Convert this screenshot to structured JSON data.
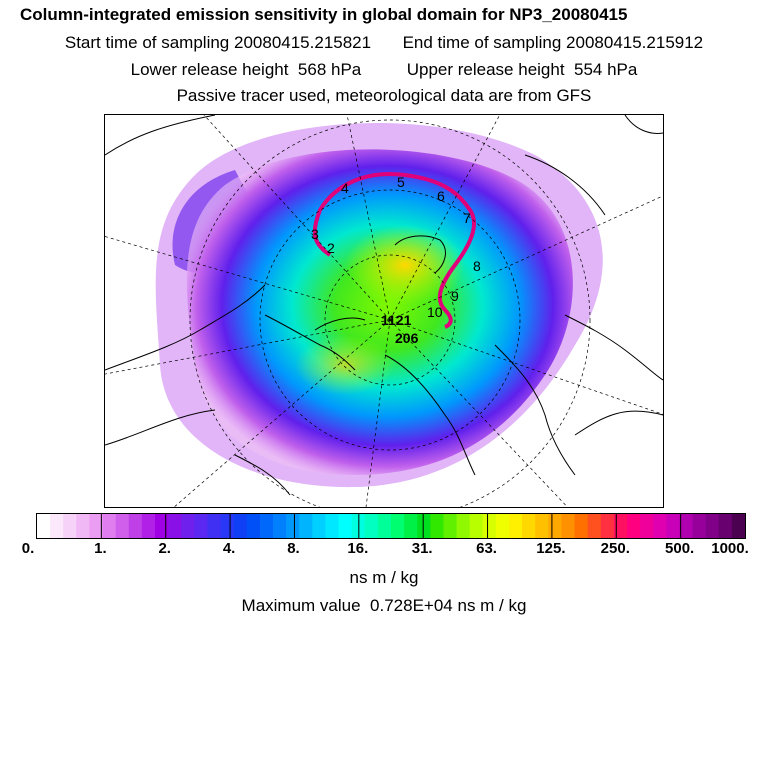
{
  "header": {
    "title": "Column-integrated emission sensitivity in global domain for NP3_20080415",
    "start_label": "Start time of sampling",
    "start_value": "20080415.215821",
    "end_label": "End time of sampling",
    "end_value": "20080415.215912",
    "lower_label": "Lower release height",
    "lower_value": "568 hPa",
    "upper_label": "Upper release height",
    "upper_value": "554 hPa",
    "note": "Passive tracer used, meteorological data are from GFS"
  },
  "map": {
    "projection": "north-polar-stereographic",
    "trajectory_labels": [
      "1",
      "2",
      "3",
      "4",
      "5",
      "6",
      "7",
      "8",
      "9",
      "10",
      "11",
      "12",
      "20"
    ],
    "center_label_1": "1121",
    "center_label_2": "10",
    "center_label_3": "206"
  },
  "colorbar": {
    "labels": [
      "0.",
      "1.",
      "2.",
      "4.",
      "8.",
      "16.",
      "31.",
      "63.",
      "125.",
      "250.",
      "500.",
      "1000."
    ],
    "colors": [
      "#ffffff",
      "#fbe9fb",
      "#f6d2f8",
      "#f1b8f6",
      "#eb9cf3",
      "#e07ef0",
      "#d060ec",
      "#c040e8",
      "#b020e6",
      "#9f00e4",
      "#8a10e8",
      "#7020ec",
      "#5a28f0",
      "#4030f4",
      "#2838f6",
      "#1040f6",
      "#0050f8",
      "#0068fa",
      "#0080fc",
      "#0098fd",
      "#00b4fe",
      "#00d0ff",
      "#00e8ff",
      "#00ffff",
      "#00ffe0",
      "#00ffc0",
      "#00ff98",
      "#00ff70",
      "#00f048",
      "#00e020",
      "#30e800",
      "#60f000",
      "#90f800",
      "#b8ff00",
      "#d8ff00",
      "#f0ff00",
      "#fff000",
      "#ffd800",
      "#ffc000",
      "#ffa800",
      "#ff9000",
      "#ff7000",
      "#ff5020",
      "#ff3040",
      "#ff1060",
      "#ff0080",
      "#f0009a",
      "#e000b0",
      "#c800b8",
      "#b000b0",
      "#98009c",
      "#800088",
      "#680070",
      "#4c0050"
    ],
    "units": "ns m / kg"
  },
  "footer": {
    "max_label": "Maximum value",
    "max_value": "0.728E+04",
    "max_units": "ns m / kg"
  }
}
